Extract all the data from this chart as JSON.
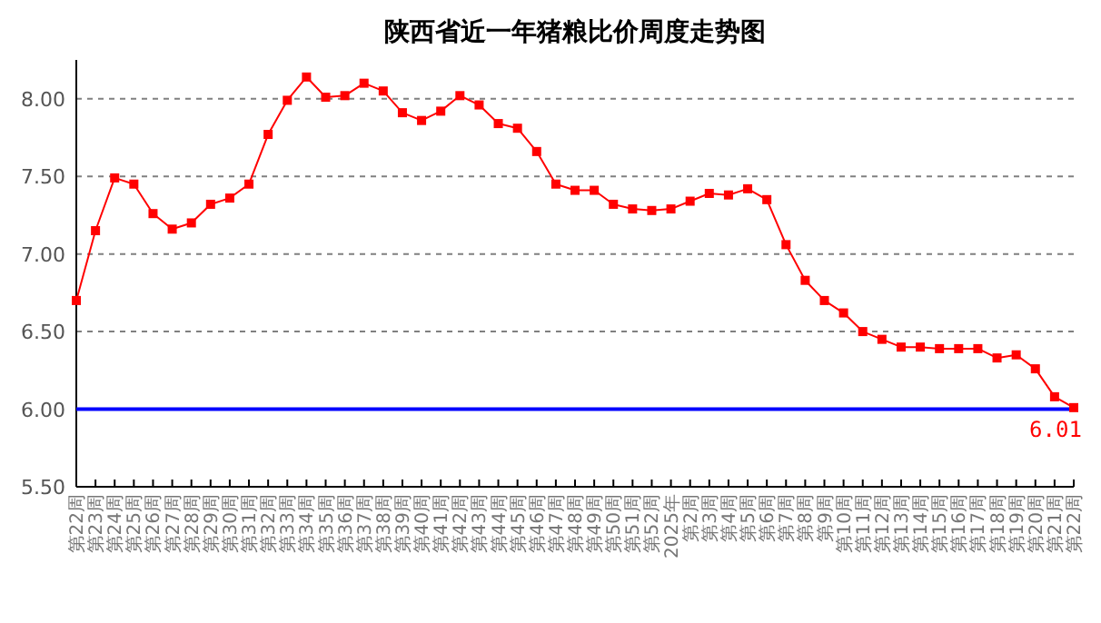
{
  "chart_data": {
    "type": "line",
    "title": "陕西省近一年猪粮比价周度走势图",
    "categories": [
      "第22周",
      "第23周",
      "第24周",
      "第25周",
      "第26周",
      "第27周",
      "第28周",
      "第29周",
      "第30周",
      "第31周",
      "第32周",
      "第33周",
      "第34周",
      "第35周",
      "第36周",
      "第37周",
      "第38周",
      "第39周",
      "第40周",
      "第41周",
      "第42周",
      "第43周",
      "第44周",
      "第45周",
      "第46周",
      "第47周",
      "第48周",
      "第49周",
      "第50周",
      "第51周",
      "第52周",
      "2025年",
      "第2周",
      "第3周",
      "第4周",
      "第5周",
      "第6周",
      "第7周",
      "第8周",
      "第9周",
      "第10周",
      "第11周",
      "第12周",
      "第13周",
      "第14周",
      "第15周",
      "第16周",
      "第17周",
      "第18周",
      "第19周",
      "第20周",
      "第21周",
      "第22周"
    ],
    "series": [
      {
        "color": "#ff0000",
        "values": [
          6.7,
          7.15,
          7.49,
          7.45,
          7.26,
          7.16,
          7.2,
          7.32,
          7.36,
          7.45,
          7.77,
          7.99,
          8.14,
          8.01,
          8.02,
          8.1,
          8.05,
          7.91,
          7.86,
          7.92,
          8.02,
          7.96,
          7.84,
          7.81,
          7.66,
          7.45,
          7.41,
          7.41,
          7.32,
          7.29,
          7.28,
          7.29,
          7.34,
          7.39,
          7.38,
          7.42,
          7.35,
          7.06,
          6.83,
          6.7,
          6.62,
          6.5,
          6.45,
          6.4,
          6.4,
          6.39,
          6.39,
          6.39,
          6.33,
          6.35,
          6.26,
          6.08,
          6.01
        ],
        "value_labels": [
          null,
          null,
          null,
          null,
          null,
          null,
          null,
          null,
          null,
          null,
          null,
          null,
          null,
          null,
          null,
          null,
          null,
          null,
          null,
          null,
          null,
          null,
          null,
          null,
          null,
          null,
          null,
          null,
          null,
          null,
          null,
          null,
          null,
          null,
          null,
          null,
          null,
          null,
          null,
          null,
          null,
          null,
          null,
          null,
          null,
          null,
          null,
          null,
          null,
          null,
          null,
          null,
          "6.01"
        ]
      }
    ],
    "ylim": [
      5.5,
      8.25
    ],
    "yticks": [
      {
        "value": 5.5,
        "label": "5.50"
      },
      {
        "value": 6,
        "label": "6.00"
      },
      {
        "value": 6.5,
        "label": "6.50"
      },
      {
        "value": 7,
        "label": "7.00"
      },
      {
        "value": 7.5,
        "label": "7.50"
      },
      {
        "value": 8,
        "label": "8.00"
      }
    ],
    "grid": "y",
    "ref_lines": [
      {
        "axis": "y",
        "value": 6,
        "color": "#0000ff"
      }
    ],
    "marker": "square",
    "line_style": "solid"
  }
}
